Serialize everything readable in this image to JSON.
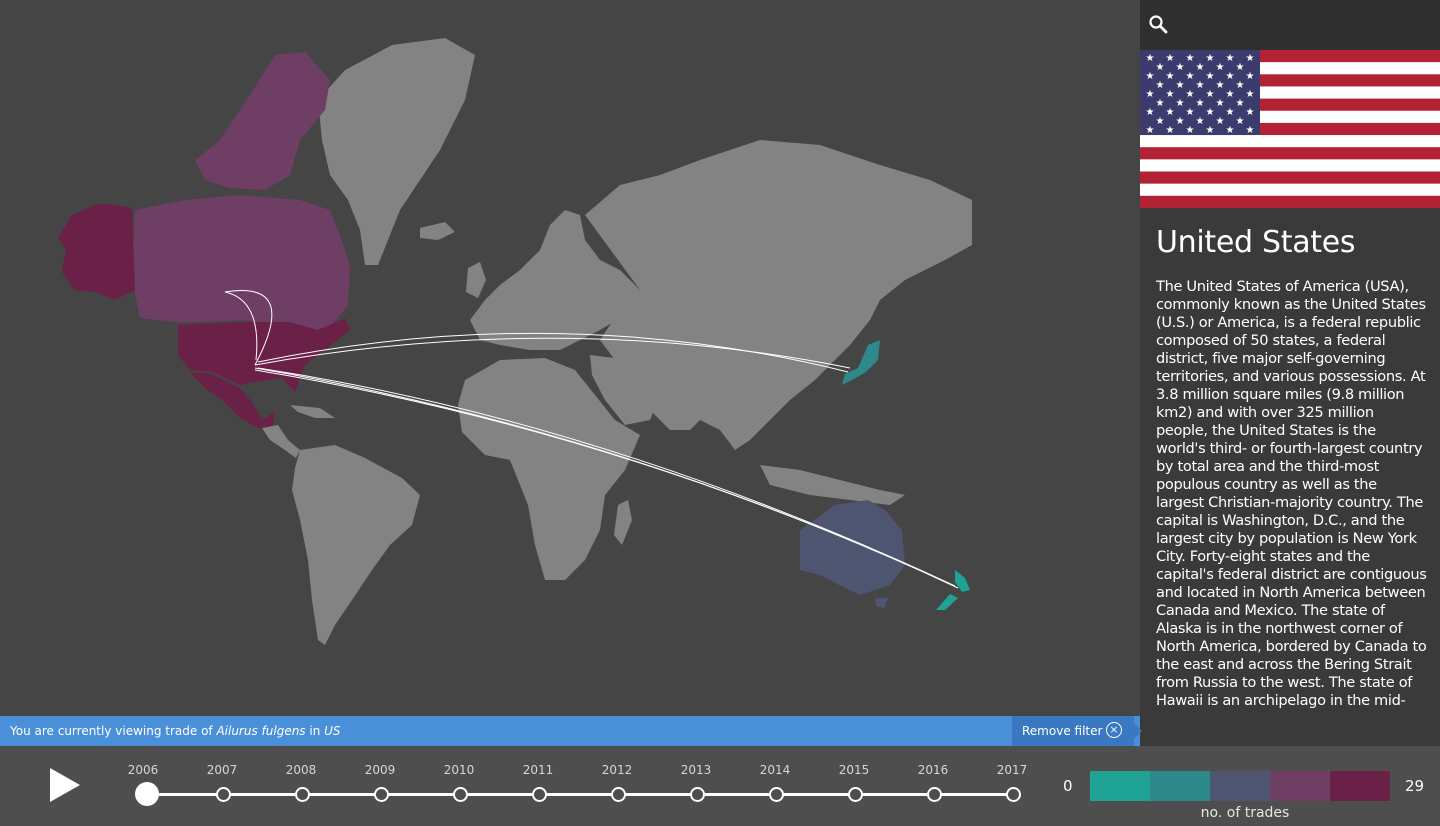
{
  "search": {
    "icon": "search-icon"
  },
  "country": {
    "name": "United States",
    "description": "The United States of America (USA), commonly known as the United States (U.S.) or America, is a federal republic composed of 50 states, a federal district, five major self-governing territories, and various possessions. At 3.8 million square miles (9.8 million km2) and with over 325 million people, the United States is the world's third- or fourth-largest country by total area and the third-most populous country as well as the largest Christian-majority country. The capital is Washington, D.C., and the largest city by population is New York City. Forty-eight states and the capital's federal district are contiguous and located in North America between Canada and Mexico. The state of Alaska is in the northwest corner of North America, bordered by Canada to the east and across the Bering Strait from Russia to the west. The state of Hawaii is an archipelago in the mid-",
    "flag_icon": "us-flag-icon"
  },
  "filter": {
    "prefix": "You are currently viewing trade of ",
    "species": "Ailurus fulgens",
    "middle": " in ",
    "country_code": "US",
    "remove_label": "Remove filter",
    "remove_icon": "close-circle-icon"
  },
  "timeline": {
    "play_icon": "play-icon",
    "years": [
      "2006",
      "2007",
      "2008",
      "2009",
      "2010",
      "2011",
      "2012",
      "2013",
      "2014",
      "2015",
      "2016",
      "2017"
    ],
    "selected_year": "2006"
  },
  "legend": {
    "min": "0",
    "max": "29",
    "title": "no. of trades",
    "colors": [
      "#1fa394",
      "#2e8a8a",
      "#4e5570",
      "#6e3e64",
      "#6b2048"
    ]
  },
  "map": {
    "highlight_colors": {
      "united_states": "#6b2048",
      "canada": "#6e3e64",
      "australia": "#4e5570",
      "japan": "#2e8a8a",
      "new_zealand": "#1fa394",
      "land": "#838383"
    }
  }
}
